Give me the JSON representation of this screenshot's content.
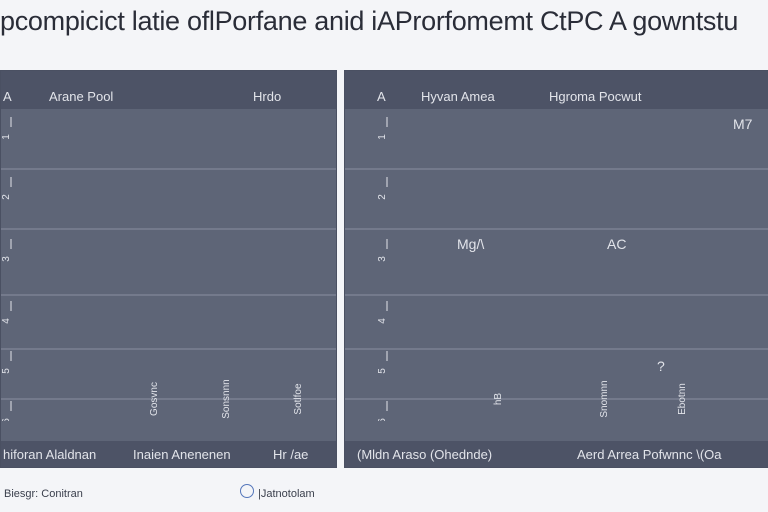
{
  "title": "pcompicict latie oflPorfane anid iAProrfomemt CtPC A gowntstu",
  "footer": {
    "left": "Biesgr: Conitran",
    "right": "|Jatnotolam"
  },
  "colors": {
    "panel": "#5e6577",
    "panel_band": "#4d5366",
    "gridline": "#8a90a0",
    "tick_text": "#e2e4ea"
  },
  "chart_data": [
    {
      "type": "line",
      "header": {
        "left": "A",
        "center": "Arane Pool",
        "right": "Hrdo"
      },
      "footer_labels": [
        "hiforan Alaldnan",
        "Inaien Anenenen",
        "Hr /ae"
      ],
      "yticks": [
        "1",
        "2",
        "3",
        "4",
        "5",
        "6"
      ],
      "xticks": [
        "Gosvnc",
        "Sonsnnn",
        "Sotlfoe"
      ],
      "annotations": [],
      "grid": true
    },
    {
      "type": "line",
      "header": {
        "left": "A",
        "center": "Hyvan Amea",
        "right": "Hgroma Pocwut"
      },
      "footer_labels": [
        "(Mldn Araso (Ohednde)",
        "Aerd Arrea Pofwnnc \\(Oa"
      ],
      "yticks": [
        "1",
        "2",
        "3",
        "4",
        "5",
        "6"
      ],
      "xticks": [
        "hB",
        "Snomnn",
        "Ebotnn"
      ],
      "annotations": [
        "M7",
        "Mg/\\",
        "AC",
        "?"
      ],
      "grid": true
    }
  ]
}
